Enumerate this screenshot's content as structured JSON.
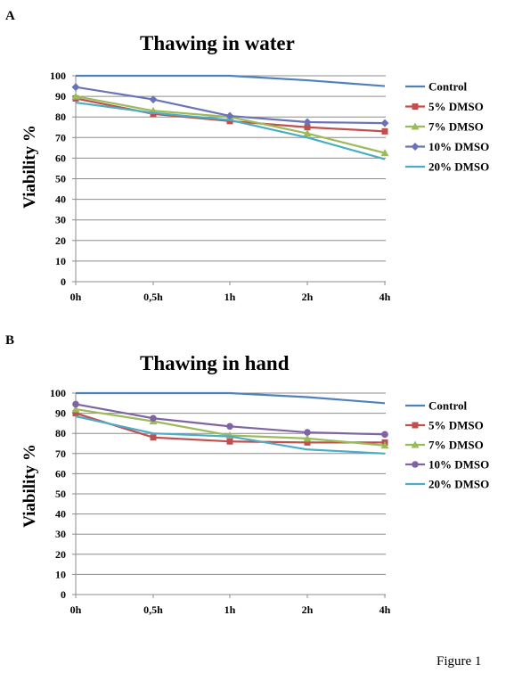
{
  "figure_label": "Figure 1",
  "panels": [
    {
      "letter": "A"
    },
    {
      "letter": "B"
    }
  ],
  "chart_data": [
    {
      "type": "line",
      "title": "Thawing in water",
      "ylabel": "Viability %",
      "xlabel": "",
      "categories": [
        "0h",
        "0,5h",
        "1h",
        "2h",
        "4h"
      ],
      "ylim": [
        0,
        100
      ],
      "yticks": [
        0,
        10,
        20,
        30,
        40,
        50,
        60,
        70,
        80,
        90,
        100
      ],
      "grid": true,
      "legend_position": "right",
      "series": [
        {
          "name": "Control",
          "color": "#4f81bd",
          "marker": "none",
          "values": [
            100,
            100,
            100,
            97.8,
            95
          ]
        },
        {
          "name": "5% DMSO",
          "color": "#c0504d",
          "marker": "square",
          "values": [
            89,
            81.5,
            78,
            75,
            73
          ]
        },
        {
          "name": "7% DMSO",
          "color": "#9bbb59",
          "marker": "triangle",
          "values": [
            90,
            83,
            80,
            72,
            62.5
          ]
        },
        {
          "name": "10% DMSO",
          "color": "#6b73b8",
          "marker": "diamond",
          "values": [
            94.5,
            88.5,
            80.5,
            77.5,
            77
          ]
        },
        {
          "name": "20% DMSO",
          "color": "#4bacc6",
          "marker": "none",
          "values": [
            87,
            82,
            78.5,
            70,
            59.5
          ]
        }
      ]
    },
    {
      "type": "line",
      "title": "Thawing in hand",
      "ylabel": "Viability %",
      "xlabel": "",
      "categories": [
        "0h",
        "0,5h",
        "1h",
        "2h",
        "4h"
      ],
      "ylim": [
        0,
        100
      ],
      "yticks": [
        0,
        10,
        20,
        30,
        40,
        50,
        60,
        70,
        80,
        90,
        100
      ],
      "grid": true,
      "legend_position": "right",
      "series": [
        {
          "name": "Control",
          "color": "#4f81bd",
          "marker": "none",
          "values": [
            100,
            100,
            100,
            98,
            95
          ]
        },
        {
          "name": "5% DMSO",
          "color": "#c0504d",
          "marker": "square",
          "values": [
            90,
            78,
            76,
            75.5,
            75.5
          ]
        },
        {
          "name": "7% DMSO",
          "color": "#9bbb59",
          "marker": "triangle",
          "values": [
            92,
            86,
            79,
            77.5,
            74
          ]
        },
        {
          "name": "10% DMSO",
          "color": "#8064a2",
          "marker": "circle",
          "values": [
            94.5,
            87.5,
            83.5,
            80.5,
            79.5
          ]
        },
        {
          "name": "20% DMSO",
          "color": "#4bacc6",
          "marker": "none",
          "values": [
            88.5,
            80,
            78.5,
            72,
            70
          ]
        }
      ]
    }
  ]
}
